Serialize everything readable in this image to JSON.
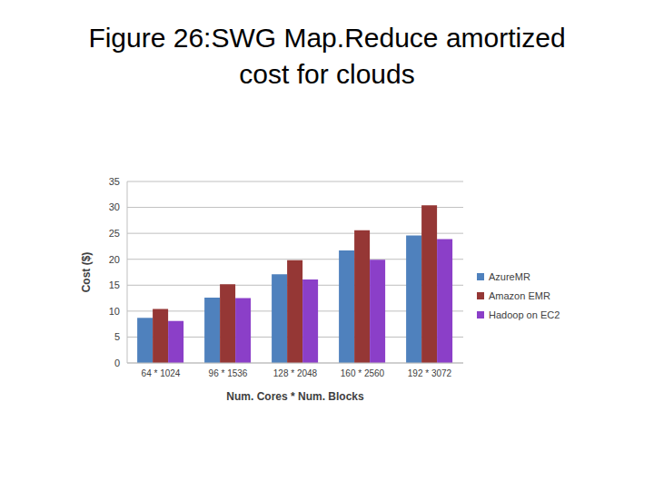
{
  "chart_data": {
    "type": "bar",
    "title": "Figure 26:SWG Map.Reduce amortized cost for clouds",
    "x_label": "Num. Cores * Num. Blocks",
    "y_label": "Cost ($)",
    "categories": [
      "64 * 1024",
      "96 * 1536",
      "128 * 2048",
      "160 * 2560",
      "192 * 3072"
    ],
    "series": [
      {
        "name": "AzureMR",
        "color": "#4f81bd",
        "values": [
          8.7,
          12.6,
          17.1,
          21.7,
          24.6
        ]
      },
      {
        "name": "Amazon EMR",
        "color": "#953735",
        "values": [
          10.4,
          15.2,
          19.8,
          25.6,
          30.4
        ]
      },
      {
        "name": "Hadoop on EC2",
        "color": "#8b3fc8",
        "values": [
          8.1,
          12.5,
          16.1,
          19.9,
          23.9
        ]
      }
    ],
    "ylim": [
      0,
      35
    ],
    "yticks": [
      0,
      5,
      10,
      15,
      20,
      25,
      30,
      35
    ],
    "grid": true,
    "legend": "right"
  }
}
